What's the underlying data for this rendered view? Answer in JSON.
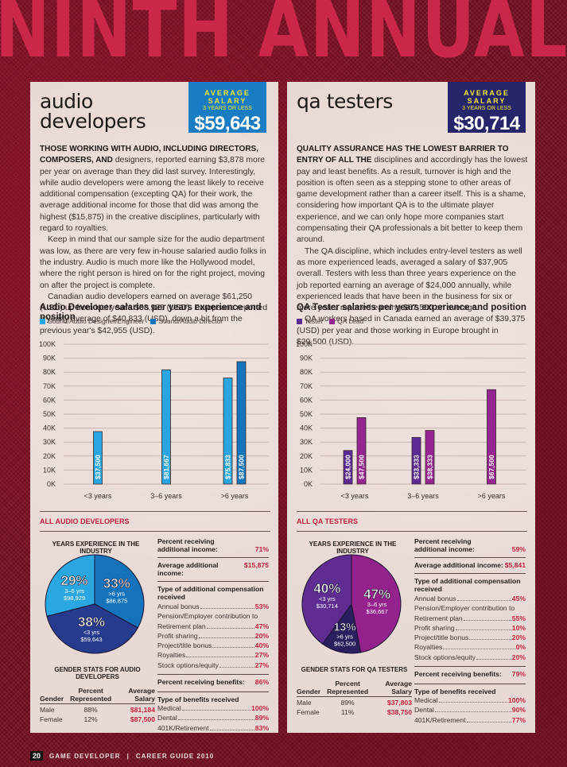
{
  "banner": "NINTH ANNUAL",
  "footer": {
    "page": "20",
    "publication": "GAME DEVELOPER",
    "separator": "|",
    "issue": "CAREER GUIDE 2010"
  },
  "audio": {
    "title_line1": "audio",
    "title_line2": "developers",
    "badge": {
      "label": "AVERAGE SALARY",
      "sublabel": "3 YEARS OR LESS",
      "value": "$59,643",
      "color": "#1a7cc3"
    },
    "lead_caps": "THOSE WORKING WITH AUDIO, INCLUDING DIRECTORS, COMPOSERS, AND",
    "paragraphs": [
      "designers, reported earning $3,878 more per year on average than they did last survey. Interestingly, while audio developers were among the least likely to receive additional compensation (excepting QA) for their work, the average additional income for those that did was among the highest ($15,875) in the creative disciplines, particularly with regard to royalties.",
      "Keep in mind that our sample size for the audio department was low, as there are very few in-house salaried audio folks in the industry. Audio is much more like the Hollywood model, where the right person is hired on for the right project, moving on after the project is complete.",
      "Canadian audio developers earned on average $61,250 (USD) up from last year's $58,929 (USD). Europeans reported a yearly average of $40,833 (USD), down a bit from the previous year's $42,955 (USD)."
    ],
    "section_heading": "ALL AUDIO DEVELOPERS",
    "pie_heading": "YEARS EXPERIENCE IN THE INDUSTRY",
    "stats": {
      "pct_additional_label": "Percent receiving additional income:",
      "pct_additional_value": "71%",
      "avg_additional_label": "Average additional income:",
      "avg_additional_value": "$15,875",
      "comp_heading": "Type of additional compensation received",
      "comp_items": [
        {
          "label": "Annual bonus",
          "value": "53%"
        },
        {
          "label": "Pension/Employer contribution to",
          "value": ""
        },
        {
          "label": "Retirement plan",
          "value": "47%"
        },
        {
          "label": "Profit sharing",
          "value": "20%"
        },
        {
          "label": "Project/title bonus",
          "value": "40%"
        },
        {
          "label": "Royalties",
          "value": "27%"
        },
        {
          "label": "Stock options/equity",
          "value": "27%"
        }
      ],
      "pct_benefits_label": "Percent receiving benefits:",
      "pct_benefits_value": "86%",
      "benefits_heading": "Type of benefits received",
      "benefits_items": [
        {
          "label": "Medical",
          "value": "100%"
        },
        {
          "label": "Dental",
          "value": "89%"
        },
        {
          "label": "401K/Retirement",
          "value": "83%"
        }
      ]
    },
    "gender": {
      "heading": "GENDER STATS FOR AUDIO DEVELOPERS",
      "columns": [
        "Gender",
        "Percent Represented",
        "Average Salary"
      ],
      "rows": [
        {
          "gender": "Male",
          "percent": "88%",
          "salary": "$81,184"
        },
        {
          "gender": "Female",
          "percent": "12%",
          "salary": "$87,500"
        }
      ]
    }
  },
  "qa": {
    "title_line1": "qa testers",
    "badge": {
      "label": "AVERAGE SALARY",
      "sublabel": "3 YEARS OR LESS",
      "value": "$30,714",
      "color": "#27256a"
    },
    "lead_caps": "QUALITY ASSURANCE HAS THE LOWEST BARRIER TO ENTRY OF ALL THE",
    "paragraphs": [
      "disciplines and accordingly has the lowest pay and least benefits. As a result, turnover is high and the position is often seen as a stepping stone to other areas of game development rather than a career itself. This is a shame, considering how important QA is to the ultimate player experience, and we can only hope more companies start compensating their QA professionals a bit better to keep them around.",
      "The QA discipline, which includes entry-level testers as well as more experienced leads, averaged a salary of $37,905 overall. Testers with less than three years experience on the job reported earning an average of $24,000 annually, while experienced leads that have been in the business for six or more years reported earning $67,500 on average.",
      "QA workers based in Canada earned an average of $39,375 (USD) per year and those working in Europe brought in $29,500 (USD)."
    ],
    "section_heading": "ALL QA TESTERS",
    "pie_heading": "YEARS EXPERIENCE IN THE INDUSTRY",
    "stats": {
      "pct_additional_label": "Percent receiving additional income:",
      "pct_additional_value": "59%",
      "avg_additional_label": "Average additional income:",
      "avg_additional_value": "$5,841",
      "comp_heading": "Type of additional compensation received",
      "comp_items": [
        {
          "label": "Annual bonus",
          "value": "45%"
        },
        {
          "label": "Pension/Employer contribution to",
          "value": ""
        },
        {
          "label": "Retirement plan",
          "value": "55%"
        },
        {
          "label": "Profit sharing",
          "value": "10%"
        },
        {
          "label": "Project/title bonus",
          "value": "20%"
        },
        {
          "label": "Royalties",
          "value": "0%"
        },
        {
          "label": "Stock options/equity",
          "value": "20%"
        }
      ],
      "pct_benefits_label": "Percent receiving benefits:",
      "pct_benefits_value": "79%",
      "benefits_heading": "Type of benefits received",
      "benefits_items": [
        {
          "label": "Medical",
          "value": "100%"
        },
        {
          "label": "Dental",
          "value": "90%"
        },
        {
          "label": "401K/Retirement",
          "value": "77%"
        }
      ]
    },
    "gender": {
      "heading": "GENDER STATS FOR QA TESTERS",
      "columns": [
        "Gender",
        "Percent Represented",
        "Average Salary"
      ],
      "rows": [
        {
          "gender": "Male",
          "percent": "89%",
          "salary": "$37,803"
        },
        {
          "gender": "Female",
          "percent": "11%",
          "salary": "$38,750"
        }
      ]
    }
  },
  "chart_data": [
    {
      "id": "audio-bar",
      "type": "bar",
      "title": "Audio Developer salaries per years experience and position",
      "xlabel": "",
      "ylabel": "",
      "categories": [
        "<3 years",
        "3–6 years",
        ">6 years"
      ],
      "yticks": [
        "0K",
        "10K",
        "20K",
        "30K",
        "40K",
        "50K",
        "60K",
        "70K",
        "80K",
        "90K",
        "100K"
      ],
      "ylim": [
        0,
        100000
      ],
      "grid": true,
      "legend": "top-left",
      "series": [
        {
          "name": "Sound/Audio Designer/Engineer",
          "color": "#29a6e1",
          "values": [
            37500,
            81667,
            75833
          ],
          "labels": [
            "$37,500",
            "$81,667",
            "$75,833"
          ]
        },
        {
          "name": "Sound/Audio Director",
          "color": "#1474be",
          "values": [
            null,
            null,
            87500
          ],
          "labels": [
            "",
            "",
            "$87,500"
          ]
        }
      ]
    },
    {
      "id": "qa-bar",
      "type": "bar",
      "title": "QA Tester salaries per years experience and position",
      "xlabel": "",
      "ylabel": "",
      "categories": [
        "<3 years",
        "3–6 years",
        ">6 years"
      ],
      "yticks": [
        "0K",
        "10K",
        "20K",
        "30K",
        "40K",
        "50K",
        "60K",
        "70K",
        "80K",
        "90K",
        "100K"
      ],
      "ylim": [
        0,
        100000
      ],
      "grid": true,
      "legend": "top-left",
      "series": [
        {
          "name": "Tester",
          "color": "#5b2a93",
          "values": [
            24000,
            33333,
            null
          ],
          "labels": [
            "$24,000",
            "$33,333",
            ""
          ]
        },
        {
          "name": "QA Lead",
          "color": "#952590",
          "values": [
            47500,
            38333,
            67500
          ],
          "labels": [
            "$47,500",
            "$38,333",
            "$67,500"
          ]
        }
      ]
    },
    {
      "id": "audio-pie",
      "type": "pie",
      "title": "YEARS EXPERIENCE IN THE INDUSTRY",
      "slices": [
        {
          "label": ">6 yrs",
          "percent": 33,
          "salary": "$86,875",
          "color": "#1473bb"
        },
        {
          "label": "<3 yrs",
          "percent": 38,
          "salary": "$59,643",
          "color": "#263a8e"
        },
        {
          "label": "3–6 yrs",
          "percent": 29,
          "salary": "$98,929",
          "color": "#2aa6e0"
        }
      ]
    },
    {
      "id": "qa-pie",
      "type": "pie",
      "title": "YEARS EXPERIENCE IN THE INDUSTRY",
      "slices": [
        {
          "label": "3–6 yrs",
          "percent": 47,
          "salary": "$36,667",
          "color": "#94228d"
        },
        {
          "label": ">6 yrs",
          "percent": 13,
          "salary": "$62,500",
          "color": "#2a1f5e"
        },
        {
          "label": "<3 yrs",
          "percent": 40,
          "salary": "$30,714",
          "color": "#5f2c91"
        }
      ]
    }
  ]
}
